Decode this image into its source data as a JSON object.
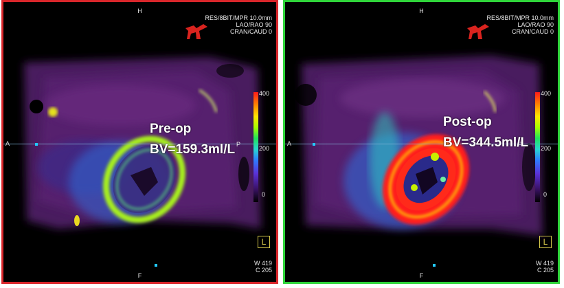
{
  "left": {
    "top_label": "H",
    "bottom_label": "F",
    "left_label": "A",
    "right_label": "P",
    "info_lines": [
      "RES/8BIT/MPR 10.0mm",
      "LAO/RAO   90",
      "CRAN/CAUD   0"
    ],
    "colorbar": [
      "400",
      "200",
      "0"
    ],
    "view_tag": "L",
    "window": "W   419",
    "center": "C   205",
    "overlay_title": "Pre-op",
    "overlay_value": "BV=159.3ml/L"
  },
  "right": {
    "top_label": "H",
    "bottom_label": "F",
    "left_label": "A",
    "right_label": "P",
    "info_lines": [
      "RES/8BIT/MPR 10.0mm",
      "LAO/RAO   90",
      "CRAN/CAUD   0"
    ],
    "colorbar": [
      "400",
      "200",
      "0"
    ],
    "view_tag": "L",
    "window": "W   419",
    "center": "C   205",
    "overlay_title": "Post-op",
    "overlay_value": "BV=344.5ml/L"
  },
  "colors": {
    "left_border": "#d9262b",
    "right_border": "#2fd43a"
  },
  "icons": [
    "orientation-figure-icon",
    "view-orientation-icon"
  ]
}
